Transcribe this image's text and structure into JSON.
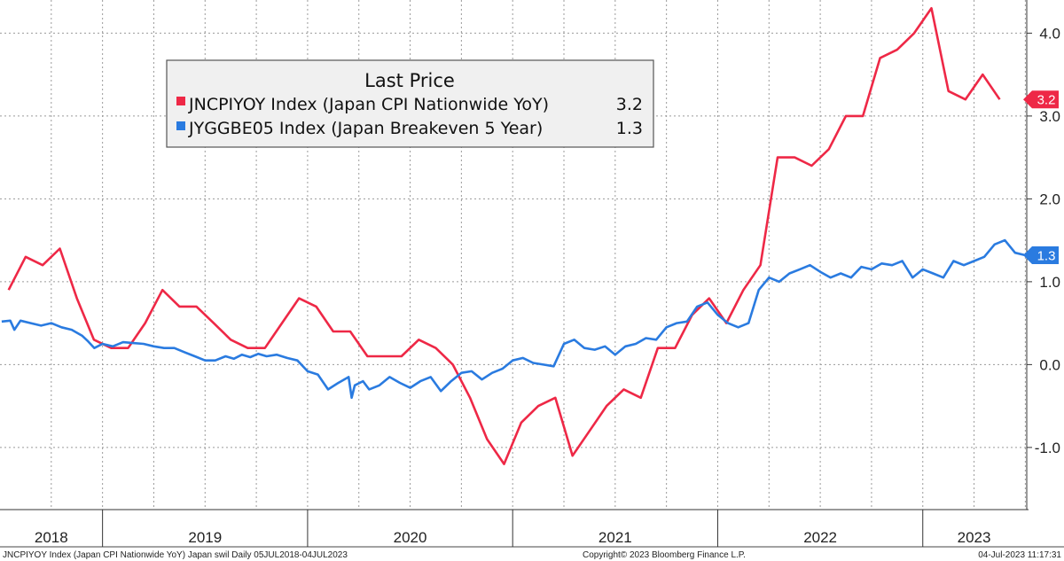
{
  "chart_data": {
    "type": "line",
    "title": "",
    "ylabel": "",
    "xlabel": "",
    "ylim": [
      -1.75,
      4.4
    ],
    "yticks": [
      -1.0,
      0.0,
      1.0,
      2.0,
      3.0,
      4.0
    ],
    "ytick_labels": [
      "-1.0",
      "0.0",
      "1.0",
      "2.0",
      "3.0",
      "4.0"
    ],
    "xlim": [
      2018.5,
      2023.507
    ],
    "year_labels": [
      {
        "label": "2018",
        "x": 2018.75
      },
      {
        "label": "2019",
        "x": 2019.5
      },
      {
        "label": "2020",
        "x": 2020.5
      },
      {
        "label": "2021",
        "x": 2021.5
      },
      {
        "label": "2022",
        "x": 2022.5
      },
      {
        "label": "2023",
        "x": 2023.25
      }
    ],
    "year_boundaries": [
      2019.0,
      2020.0,
      2021.0,
      2022.0,
      2023.0
    ],
    "legend": {
      "title": "Last Price",
      "position": "top-left",
      "entries": [
        {
          "label": "JNCPIYOY Index (Japan CPI Nationwide YoY)",
          "last": "3.2",
          "color": "#ee2846"
        },
        {
          "label": "JYGGBE05 Index (Japan Breakeven 5 Year)",
          "last": "1.3",
          "color": "#2a7be0"
        }
      ]
    },
    "series": [
      {
        "name": "JNCPIYOY Index (Japan CPI Nationwide YoY)",
        "color": "#ee2846",
        "last_label": "3.2",
        "x": [
          2018.542,
          2018.625,
          2018.708,
          2018.792,
          2018.875,
          2018.958,
          2019.042,
          2019.125,
          2019.208,
          2019.292,
          2019.375,
          2019.458,
          2019.542,
          2019.625,
          2019.708,
          2019.792,
          2019.875,
          2019.958,
          2020.042,
          2020.125,
          2020.208,
          2020.292,
          2020.375,
          2020.458,
          2020.542,
          2020.625,
          2020.708,
          2020.792,
          2020.875,
          2020.958,
          2021.042,
          2021.125,
          2021.208,
          2021.292,
          2021.375,
          2021.458,
          2021.542,
          2021.625,
          2021.708,
          2021.792,
          2021.875,
          2021.958,
          2022.042,
          2022.125,
          2022.208,
          2022.292,
          2022.375,
          2022.458,
          2022.542,
          2022.625,
          2022.708,
          2022.792,
          2022.875,
          2022.958,
          2023.042,
          2023.125,
          2023.208,
          2023.292,
          2023.375
        ],
        "values": [
          0.9,
          1.3,
          1.2,
          1.4,
          0.8,
          0.3,
          0.2,
          0.2,
          0.5,
          0.9,
          0.7,
          0.7,
          0.5,
          0.3,
          0.2,
          0.2,
          0.5,
          0.8,
          0.7,
          0.4,
          0.4,
          0.1,
          0.1,
          0.1,
          0.3,
          0.2,
          0.0,
          -0.4,
          -0.9,
          -1.2,
          -0.7,
          -0.5,
          -0.4,
          -1.1,
          -0.8,
          -0.5,
          -0.3,
          -0.4,
          0.2,
          0.2,
          0.6,
          0.8,
          0.5,
          0.9,
          1.2,
          2.5,
          2.5,
          2.4,
          2.6,
          3.0,
          3.0,
          3.7,
          3.8,
          4.0,
          4.3,
          3.3,
          3.2,
          3.5,
          3.2
        ]
      },
      {
        "name": "JYGGBE05 Index (Japan Breakeven 5 Year)",
        "color": "#2a7be0",
        "last_label": "1.3",
        "x": [
          2018.508,
          2018.55,
          2018.57,
          2018.6,
          2018.65,
          2018.7,
          2018.75,
          2018.8,
          2018.85,
          2018.9,
          2018.93,
          2018.96,
          2019.0,
          2019.05,
          2019.1,
          2019.15,
          2019.2,
          2019.25,
          2019.3,
          2019.35,
          2019.4,
          2019.45,
          2019.5,
          2019.55,
          2019.6,
          2019.64,
          2019.68,
          2019.72,
          2019.76,
          2019.8,
          2019.85,
          2019.9,
          2019.95,
          2020.0,
          2020.05,
          2020.1,
          2020.15,
          2020.2,
          2020.215,
          2020.23,
          2020.27,
          2020.3,
          2020.35,
          2020.4,
          2020.45,
          2020.5,
          2020.55,
          2020.6,
          2020.65,
          2020.7,
          2020.75,
          2020.8,
          2020.85,
          2020.9,
          2020.95,
          2021.0,
          2021.05,
          2021.1,
          2021.15,
          2021.2,
          2021.25,
          2021.3,
          2021.35,
          2021.4,
          2021.45,
          2021.5,
          2021.55,
          2021.6,
          2021.65,
          2021.7,
          2021.75,
          2021.8,
          2021.85,
          2021.9,
          2021.95,
          2022.0,
          2022.05,
          2022.1,
          2022.15,
          2022.2,
          2022.25,
          2022.3,
          2022.35,
          2022.4,
          2022.45,
          2022.5,
          2022.55,
          2022.6,
          2022.65,
          2022.7,
          2022.75,
          2022.8,
          2022.85,
          2022.9,
          2022.95,
          2023.0,
          2023.05,
          2023.1,
          2023.15,
          2023.2,
          2023.25,
          2023.3,
          2023.35,
          2023.4,
          2023.45,
          2023.5
        ],
        "values": [
          0.52,
          0.53,
          0.42,
          0.53,
          0.5,
          0.47,
          0.5,
          0.45,
          0.42,
          0.35,
          0.28,
          0.2,
          0.25,
          0.22,
          0.27,
          0.26,
          0.25,
          0.22,
          0.2,
          0.2,
          0.15,
          0.1,
          0.05,
          0.05,
          0.1,
          0.07,
          0.12,
          0.09,
          0.13,
          0.1,
          0.12,
          0.08,
          0.05,
          -0.08,
          -0.12,
          -0.3,
          -0.22,
          -0.15,
          -0.4,
          -0.25,
          -0.2,
          -0.3,
          -0.25,
          -0.15,
          -0.22,
          -0.28,
          -0.2,
          -0.15,
          -0.32,
          -0.2,
          -0.1,
          -0.08,
          -0.18,
          -0.1,
          -0.05,
          0.05,
          0.08,
          0.02,
          0.0,
          -0.02,
          0.25,
          0.3,
          0.2,
          0.18,
          0.22,
          0.12,
          0.22,
          0.25,
          0.32,
          0.3,
          0.45,
          0.5,
          0.52,
          0.7,
          0.75,
          0.6,
          0.5,
          0.45,
          0.5,
          0.9,
          1.05,
          1.0,
          1.1,
          1.15,
          1.2,
          1.12,
          1.05,
          1.1,
          1.05,
          1.18,
          1.15,
          1.22,
          1.2,
          1.25,
          1.05,
          1.15,
          1.1,
          1.05,
          1.25,
          1.2,
          1.25,
          1.3,
          1.45,
          1.5,
          1.35,
          1.32
        ]
      }
    ]
  },
  "footer": {
    "left": "JNCPIYOY Index (Japan CPI Nationwide YoY) Japan swil  Daily 05JUL2018-04JUL2023",
    "center": "Copyright© 2023 Bloomberg Finance L.P.",
    "right": "04-Jul-2023 11:17:31"
  }
}
